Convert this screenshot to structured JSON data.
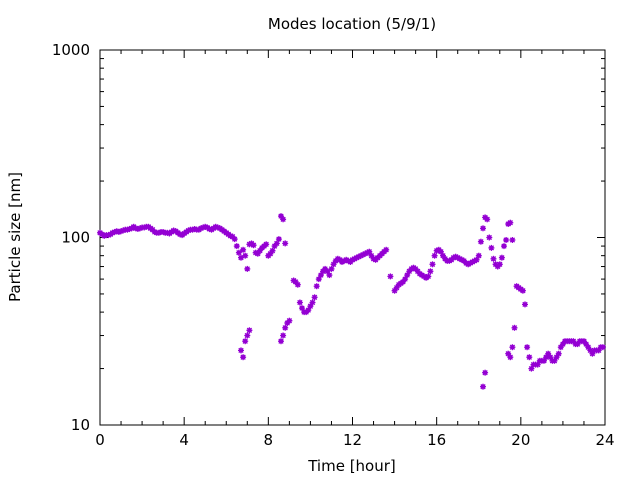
{
  "chart_data": {
    "type": "scatter",
    "title": "Modes location (5/9/1)",
    "xlabel": "Time [hour]",
    "ylabel": "Particle size [nm]",
    "xlim": [
      0,
      24
    ],
    "ylim": [
      10,
      1000
    ],
    "y_scale": "log",
    "grid": false,
    "legend": "none",
    "marker_color": "#9400d3",
    "x_ticks": [
      "0",
      "4",
      "8",
      "12",
      "16",
      "20",
      "24"
    ],
    "y_ticks": [
      "10",
      "100",
      "1000"
    ],
    "series": [
      {
        "name": "",
        "points": [
          [
            0.0,
            106
          ],
          [
            0.1,
            104
          ],
          [
            0.2,
            102
          ],
          [
            0.3,
            103
          ],
          [
            0.4,
            103
          ],
          [
            0.5,
            104
          ],
          [
            0.6,
            106
          ],
          [
            0.7,
            107
          ],
          [
            0.8,
            108
          ],
          [
            0.9,
            107
          ],
          [
            1.0,
            108
          ],
          [
            1.1,
            109
          ],
          [
            1.2,
            110
          ],
          [
            1.3,
            110
          ],
          [
            1.4,
            111
          ],
          [
            1.5,
            112
          ],
          [
            1.6,
            114
          ],
          [
            1.7,
            112
          ],
          [
            1.8,
            111
          ],
          [
            1.9,
            112
          ],
          [
            2.0,
            113
          ],
          [
            2.1,
            113
          ],
          [
            2.2,
            114
          ],
          [
            2.3,
            114
          ],
          [
            2.4,
            112
          ],
          [
            2.5,
            110
          ],
          [
            2.6,
            107
          ],
          [
            2.7,
            106
          ],
          [
            2.8,
            106
          ],
          [
            2.9,
            107
          ],
          [
            3.0,
            107
          ],
          [
            3.1,
            106
          ],
          [
            3.2,
            106
          ],
          [
            3.3,
            105
          ],
          [
            3.4,
            107
          ],
          [
            3.5,
            109
          ],
          [
            3.6,
            108
          ],
          [
            3.7,
            106
          ],
          [
            3.8,
            104
          ],
          [
            3.9,
            103
          ],
          [
            4.0,
            105
          ],
          [
            4.1,
            107
          ],
          [
            4.2,
            109
          ],
          [
            4.3,
            110
          ],
          [
            4.4,
            110
          ],
          [
            4.5,
            111
          ],
          [
            4.6,
            110
          ],
          [
            4.7,
            110
          ],
          [
            4.8,
            112
          ],
          [
            4.9,
            113
          ],
          [
            5.0,
            114
          ],
          [
            5.1,
            113
          ],
          [
            5.2,
            111
          ],
          [
            5.3,
            110
          ],
          [
            5.4,
            112
          ],
          [
            5.5,
            114
          ],
          [
            5.6,
            113
          ],
          [
            5.7,
            112
          ],
          [
            5.8,
            110
          ],
          [
            5.9,
            108
          ],
          [
            6.0,
            106
          ],
          [
            6.1,
            104
          ],
          [
            6.2,
            102
          ],
          [
            6.3,
            101
          ],
          [
            6.4,
            98
          ],
          [
            6.5,
            90
          ],
          [
            6.6,
            83
          ],
          [
            6.7,
            78
          ],
          [
            6.8,
            86
          ],
          [
            6.9,
            80
          ],
          [
            7.0,
            68
          ],
          [
            7.1,
            92
          ],
          [
            7.2,
            93
          ],
          [
            7.3,
            91
          ],
          [
            7.4,
            83
          ],
          [
            7.5,
            82
          ],
          [
            7.6,
            85
          ],
          [
            7.7,
            88
          ],
          [
            7.8,
            90
          ],
          [
            7.9,
            92
          ],
          [
            8.0,
            80
          ],
          [
            8.1,
            82
          ],
          [
            8.2,
            85
          ],
          [
            8.3,
            90
          ],
          [
            8.4,
            93
          ],
          [
            8.5,
            98
          ],
          [
            8.6,
            130
          ],
          [
            8.7,
            125
          ],
          [
            8.8,
            93
          ],
          [
            6.7,
            25
          ],
          [
            6.8,
            23
          ],
          [
            6.9,
            28
          ],
          [
            7.0,
            30
          ],
          [
            7.1,
            32
          ],
          [
            8.6,
            28
          ],
          [
            8.7,
            30
          ],
          [
            8.8,
            33
          ],
          [
            8.9,
            35
          ],
          [
            9.0,
            36
          ],
          [
            9.2,
            59
          ],
          [
            9.3,
            58
          ],
          [
            9.4,
            56
          ],
          [
            9.5,
            45
          ],
          [
            9.6,
            42
          ],
          [
            9.7,
            40
          ],
          [
            9.8,
            40
          ],
          [
            9.9,
            41
          ],
          [
            10.0,
            43
          ],
          [
            10.1,
            45
          ],
          [
            10.2,
            48
          ],
          [
            10.3,
            55
          ],
          [
            10.4,
            60
          ],
          [
            10.5,
            63
          ],
          [
            10.6,
            66
          ],
          [
            10.7,
            68
          ],
          [
            10.8,
            66
          ],
          [
            10.9,
            63
          ],
          [
            11.0,
            68
          ],
          [
            11.1,
            72
          ],
          [
            11.2,
            75
          ],
          [
            11.3,
            77
          ],
          [
            11.4,
            76
          ],
          [
            11.5,
            74
          ],
          [
            11.6,
            75
          ],
          [
            11.7,
            76
          ],
          [
            11.8,
            75
          ],
          [
            11.9,
            74
          ],
          [
            12.0,
            76
          ],
          [
            12.1,
            77
          ],
          [
            12.2,
            78
          ],
          [
            12.3,
            79
          ],
          [
            12.4,
            80
          ],
          [
            12.5,
            81
          ],
          [
            12.6,
            82
          ],
          [
            12.7,
            83
          ],
          [
            12.8,
            84
          ],
          [
            12.9,
            80
          ],
          [
            13.0,
            77
          ],
          [
            13.1,
            76
          ],
          [
            13.2,
            78
          ],
          [
            13.3,
            80
          ],
          [
            13.4,
            82
          ],
          [
            13.5,
            84
          ],
          [
            13.6,
            86
          ],
          [
            13.8,
            62
          ],
          [
            14.0,
            52
          ],
          [
            14.1,
            54
          ],
          [
            14.2,
            56
          ],
          [
            14.3,
            57
          ],
          [
            14.4,
            58
          ],
          [
            14.5,
            60
          ],
          [
            14.6,
            63
          ],
          [
            14.7,
            66
          ],
          [
            14.8,
            68
          ],
          [
            14.9,
            69
          ],
          [
            15.0,
            68
          ],
          [
            15.1,
            66
          ],
          [
            15.2,
            64
          ],
          [
            15.3,
            63
          ],
          [
            15.4,
            62
          ],
          [
            15.5,
            61
          ],
          [
            15.6,
            62
          ],
          [
            15.7,
            66
          ],
          [
            15.8,
            72
          ],
          [
            15.9,
            80
          ],
          [
            16.0,
            85
          ],
          [
            16.1,
            86
          ],
          [
            16.2,
            84
          ],
          [
            16.3,
            80
          ],
          [
            16.4,
            77
          ],
          [
            16.5,
            75
          ],
          [
            16.6,
            75
          ],
          [
            16.7,
            76
          ],
          [
            16.8,
            78
          ],
          [
            16.9,
            79
          ],
          [
            17.0,
            78
          ],
          [
            17.1,
            77
          ],
          [
            17.2,
            76
          ],
          [
            17.3,
            75
          ],
          [
            17.4,
            73
          ],
          [
            17.5,
            72
          ],
          [
            17.6,
            73
          ],
          [
            17.7,
            74
          ],
          [
            17.8,
            75
          ],
          [
            17.9,
            76
          ],
          [
            18.0,
            80
          ],
          [
            18.1,
            95
          ],
          [
            18.2,
            112
          ],
          [
            18.3,
            128
          ],
          [
            18.4,
            125
          ],
          [
            18.5,
            100
          ],
          [
            18.6,
            88
          ],
          [
            18.7,
            77
          ],
          [
            18.8,
            72
          ],
          [
            18.9,
            70
          ],
          [
            19.0,
            72
          ],
          [
            19.1,
            78
          ],
          [
            19.2,
            90
          ],
          [
            19.3,
            97
          ],
          [
            19.4,
            118
          ],
          [
            19.5,
            120
          ],
          [
            19.6,
            97
          ],
          [
            19.8,
            55
          ],
          [
            19.9,
            54
          ],
          [
            20.0,
            53
          ],
          [
            20.1,
            52
          ],
          [
            18.2,
            16
          ],
          [
            18.3,
            19
          ],
          [
            19.4,
            24
          ],
          [
            19.5,
            23
          ],
          [
            19.6,
            26
          ],
          [
            19.7,
            33
          ],
          [
            20.2,
            44
          ],
          [
            20.3,
            26
          ],
          [
            20.4,
            23
          ],
          [
            20.5,
            20
          ],
          [
            20.6,
            21
          ],
          [
            20.7,
            21
          ],
          [
            20.8,
            21
          ],
          [
            20.9,
            22
          ],
          [
            21.0,
            22
          ],
          [
            21.1,
            22
          ],
          [
            21.2,
            23
          ],
          [
            21.3,
            24
          ],
          [
            21.4,
            23
          ],
          [
            21.5,
            22
          ],
          [
            21.6,
            22
          ],
          [
            21.7,
            23
          ],
          [
            21.8,
            24
          ],
          [
            21.9,
            26
          ],
          [
            22.0,
            27
          ],
          [
            22.1,
            28
          ],
          [
            22.2,
            28
          ],
          [
            22.3,
            28
          ],
          [
            22.4,
            28
          ],
          [
            22.5,
            28
          ],
          [
            22.6,
            27
          ],
          [
            22.7,
            27
          ],
          [
            22.8,
            28
          ],
          [
            22.9,
            28
          ],
          [
            23.0,
            28
          ],
          [
            23.1,
            27
          ],
          [
            23.2,
            26
          ],
          [
            23.3,
            25
          ],
          [
            23.4,
            24
          ],
          [
            23.5,
            25
          ],
          [
            23.6,
            25
          ],
          [
            23.7,
            25
          ],
          [
            23.8,
            26
          ],
          [
            23.9,
            26
          ]
        ]
      }
    ]
  }
}
